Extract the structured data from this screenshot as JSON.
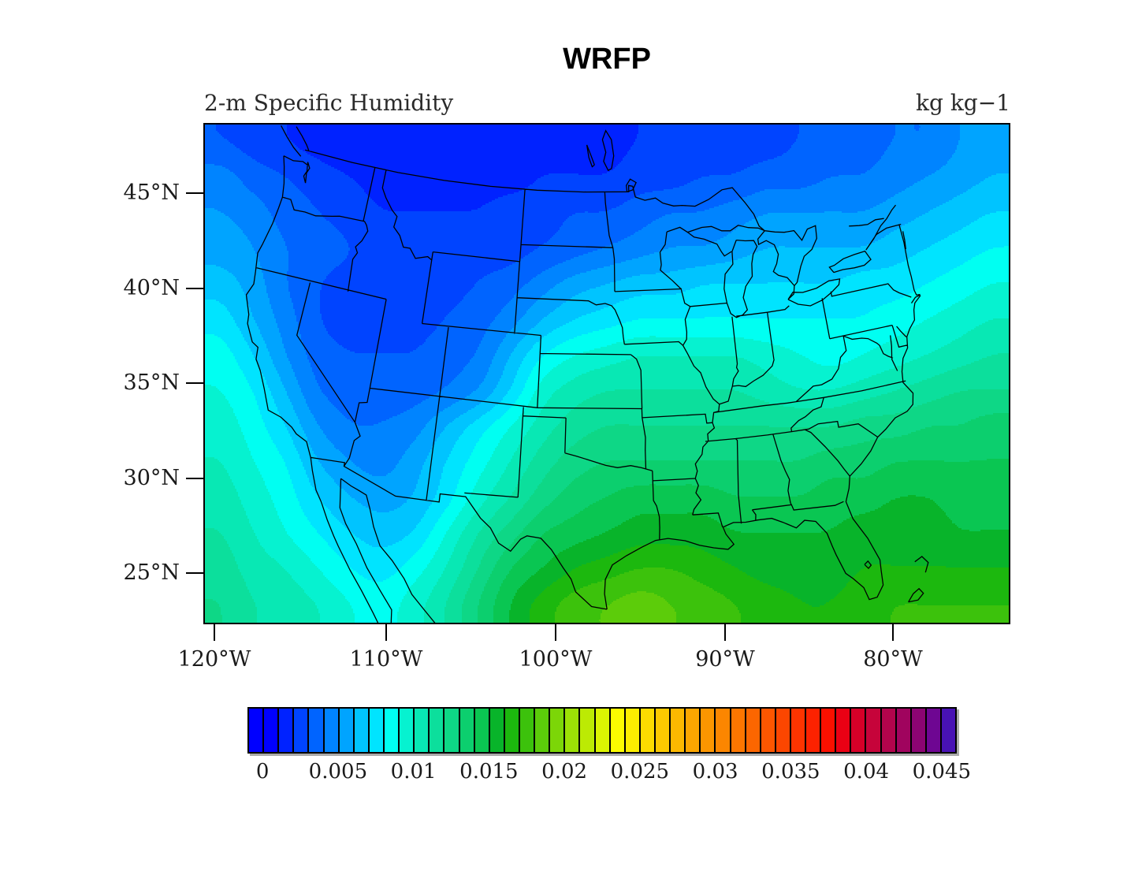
{
  "title": "WRFP",
  "field_label": "2-m Specific Humidity",
  "units_label": "kg kg−1",
  "axes": {
    "lat_tick_labels": [
      "45°N",
      "40°N",
      "35°N",
      "30°N",
      "25°N"
    ],
    "lat_tick_values": [
      45,
      40,
      35,
      30,
      25
    ],
    "lon_tick_labels": [
      "120°W",
      "110°W",
      "100°W",
      "90°W",
      "80°W"
    ],
    "lon_tick_values": [
      -120,
      -110,
      -100,
      -90,
      -80
    ]
  },
  "colorbar": {
    "labels": [
      "0",
      "0.005",
      "0.01",
      "0.015",
      "0.02",
      "0.025",
      "0.03",
      "0.035",
      "0.04",
      "0.045"
    ],
    "tick_values": [
      0,
      0.005,
      0.01,
      0.015,
      0.02,
      0.025,
      0.03,
      0.035,
      0.04,
      0.045
    ],
    "box_interval": 0.001,
    "colors": [
      "#0000ff",
      "#0000ff",
      "#0022ff",
      "#0044ff",
      "#0064ff",
      "#0084ff",
      "#00a4ff",
      "#00c4ff",
      "#00e4ff",
      "#00fff2",
      "#06f2d0",
      "#08e8b4",
      "#0cdf9c",
      "#0ed786",
      "#0ccf6e",
      "#0ac652",
      "#08b42a",
      "#1cb80e",
      "#3cc20c",
      "#5ccc0a",
      "#7cd608",
      "#9ce006",
      "#bcea04",
      "#dcf402",
      "#fcfc00",
      "#fcee00",
      "#fcdc00",
      "#fcca00",
      "#fcb800",
      "#fca600",
      "#fc9600",
      "#fc8600",
      "#fc7600",
      "#fc6600",
      "#fc5600",
      "#fc4600",
      "#fc3400",
      "#fc2200",
      "#fa1000",
      "#ea0014",
      "#d60028",
      "#c6043a",
      "#b2044c",
      "#a0045e",
      "#8c0472",
      "#6e0692",
      "#4812b4"
    ]
  },
  "chart_data": {
    "type": "heatmap",
    "subtype": "filled-contour-map",
    "title": "WRFP",
    "subtitle": "2-m Specific Humidity",
    "units": "kg kg-1",
    "projection": "lambert-conformal (CONUS)",
    "lon_range": [
      -120.6,
      -73.2
    ],
    "lat_range": [
      22.4,
      48.6
    ],
    "contour_interval": 0.001,
    "value_scale_to_kg_per_kg": 0.001,
    "grid_lon": [
      -120.6,
      -118.6,
      -116.6,
      -114.7,
      -112.7,
      -110.7,
      -108.8,
      -106.8,
      -104.8,
      -102.8,
      -100.9,
      -98.9,
      -96.9,
      -94.9,
      -93.0,
      -91.0,
      -89.0,
      -87.0,
      -85.1,
      -83.1,
      -81.1,
      -79.1,
      -77.2,
      -75.2,
      -73.2
    ],
    "grid_lat": [
      48.6,
      46.6,
      44.6,
      42.6,
      40.6,
      38.6,
      36.6,
      34.6,
      32.6,
      30.6,
      28.6,
      26.6,
      24.6,
      22.4
    ],
    "values_g_per_kg": [
      [
        3,
        2.5,
        2,
        1.5,
        1,
        1,
        1,
        1,
        1,
        1.5,
        1.5,
        1.5,
        1.5,
        2,
        2,
        2,
        2.5,
        2.5,
        3,
        3,
        3.5,
        4,
        4,
        5,
        5.5
      ],
      [
        4.5,
        3.5,
        3,
        2.5,
        2,
        1.5,
        1.5,
        1.5,
        1.5,
        1.5,
        2,
        2,
        2,
        2.5,
        2.5,
        3,
        3,
        3.5,
        3.5,
        4,
        4,
        4.5,
        5,
        5.5,
        6
      ],
      [
        5,
        4.5,
        3.5,
        3,
        2.5,
        2,
        2,
        2,
        2,
        2.5,
        2.5,
        3,
        3,
        3.5,
        4,
        4,
        4.5,
        5,
        5,
        5,
        5,
        5.5,
        6,
        6.5,
        7
      ],
      [
        5.5,
        5,
        4,
        3.5,
        3,
        2.5,
        2,
        2,
        2.5,
        2.5,
        3,
        3.5,
        4,
        4.5,
        5,
        5,
        5.5,
        6,
        6,
        6,
        6,
        6.5,
        7,
        7.5,
        8
      ],
      [
        6.5,
        5.5,
        4,
        3,
        2.5,
        2.5,
        2,
        2.5,
        3,
        3.5,
        4.5,
        5.5,
        6,
        6.5,
        6.5,
        7,
        7,
        7,
        7,
        7,
        7.5,
        7.5,
        8,
        8.5,
        9
      ],
      [
        7.5,
        6,
        4.5,
        3,
        2.5,
        2.5,
        2.5,
        3,
        3.5,
        4.5,
        6,
        7,
        7.5,
        8,
        8,
        8,
        8,
        8,
        8,
        8,
        8,
        8.5,
        9,
        9.5,
        10
      ],
      [
        8.5,
        7,
        5,
        3.5,
        3,
        3,
        3,
        3.5,
        4,
        6,
        8,
        9,
        9.5,
        10,
        10,
        10,
        10,
        9.5,
        9,
        8.5,
        9,
        9.5,
        10,
        10.5,
        11
      ],
      [
        9,
        8,
        6,
        4,
        3.5,
        3.5,
        3.5,
        4,
        5,
        7,
        9.5,
        10.5,
        11,
        11,
        11,
        11,
        11,
        10.5,
        10,
        10,
        10.5,
        11,
        11.5,
        12,
        12
      ],
      [
        9.5,
        8.5,
        7,
        5,
        4,
        4,
        4.5,
        6,
        7.5,
        9,
        10.5,
        11.5,
        12,
        12,
        12,
        12,
        12,
        12,
        12,
        12,
        12.5,
        12.5,
        13,
        13,
        13.5
      ],
      [
        10,
        9,
        8,
        6,
        5,
        4.5,
        5.5,
        7,
        8.5,
        10,
        11.5,
        12.5,
        13,
        13,
        13,
        13,
        13,
        13,
        13,
        13.5,
        13.5,
        14,
        14,
        14,
        14
      ],
      [
        10.5,
        9.5,
        8.5,
        7,
        6,
        5.5,
        6,
        7.5,
        9.5,
        11,
        12.5,
        13.5,
        14,
        14.5,
        14.5,
        14.5,
        14,
        14,
        14,
        14.5,
        14.5,
        15,
        15,
        14.5,
        14.5
      ],
      [
        11,
        10,
        9,
        8,
        7,
        6.5,
        7,
        9,
        11,
        12.5,
        14,
        14.5,
        15,
        15.5,
        15.5,
        15.5,
        15,
        15,
        15,
        15,
        15.5,
        15.5,
        15.5,
        15,
        15
      ],
      [
        11.5,
        10.5,
        10,
        9,
        8,
        7.5,
        8.5,
        10,
        12,
        14,
        15,
        16,
        16.5,
        17,
        17,
        16.5,
        16,
        15.5,
        15.5,
        15.5,
        16,
        16,
        16,
        16,
        16
      ],
      [
        12,
        11,
        10.5,
        10,
        9,
        8.5,
        9.5,
        11,
        13,
        15,
        16.5,
        17.5,
        18,
        18.5,
        18,
        17.5,
        17,
        16.5,
        16,
        16,
        16.5,
        17,
        17,
        17,
        17
      ]
    ]
  }
}
